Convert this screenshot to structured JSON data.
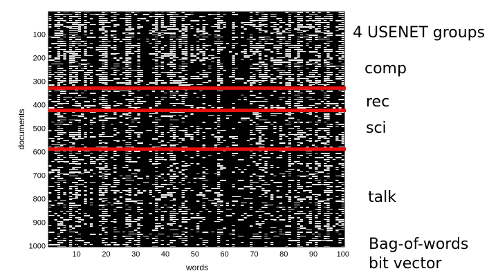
{
  "chart_data": {
    "type": "bitmatrix",
    "xlabel": "words",
    "ylabel": "documents",
    "xlim": [
      0.5,
      100.5
    ],
    "ylim": [
      0.5,
      1000.5
    ],
    "xticks": [
      10,
      20,
      30,
      40,
      50,
      60,
      70,
      80,
      90,
      100
    ],
    "yticks": [
      100,
      200,
      300,
      400,
      500,
      600,
      700,
      800,
      900,
      1000
    ],
    "dividers": {
      "values": [
        325,
        420,
        585
      ],
      "color": "#e8100f"
    },
    "annotations": [
      "4 USENET groups",
      "comp",
      "rec",
      "sci",
      "talk",
      "Bag-of-words",
      "bit vector"
    ]
  }
}
